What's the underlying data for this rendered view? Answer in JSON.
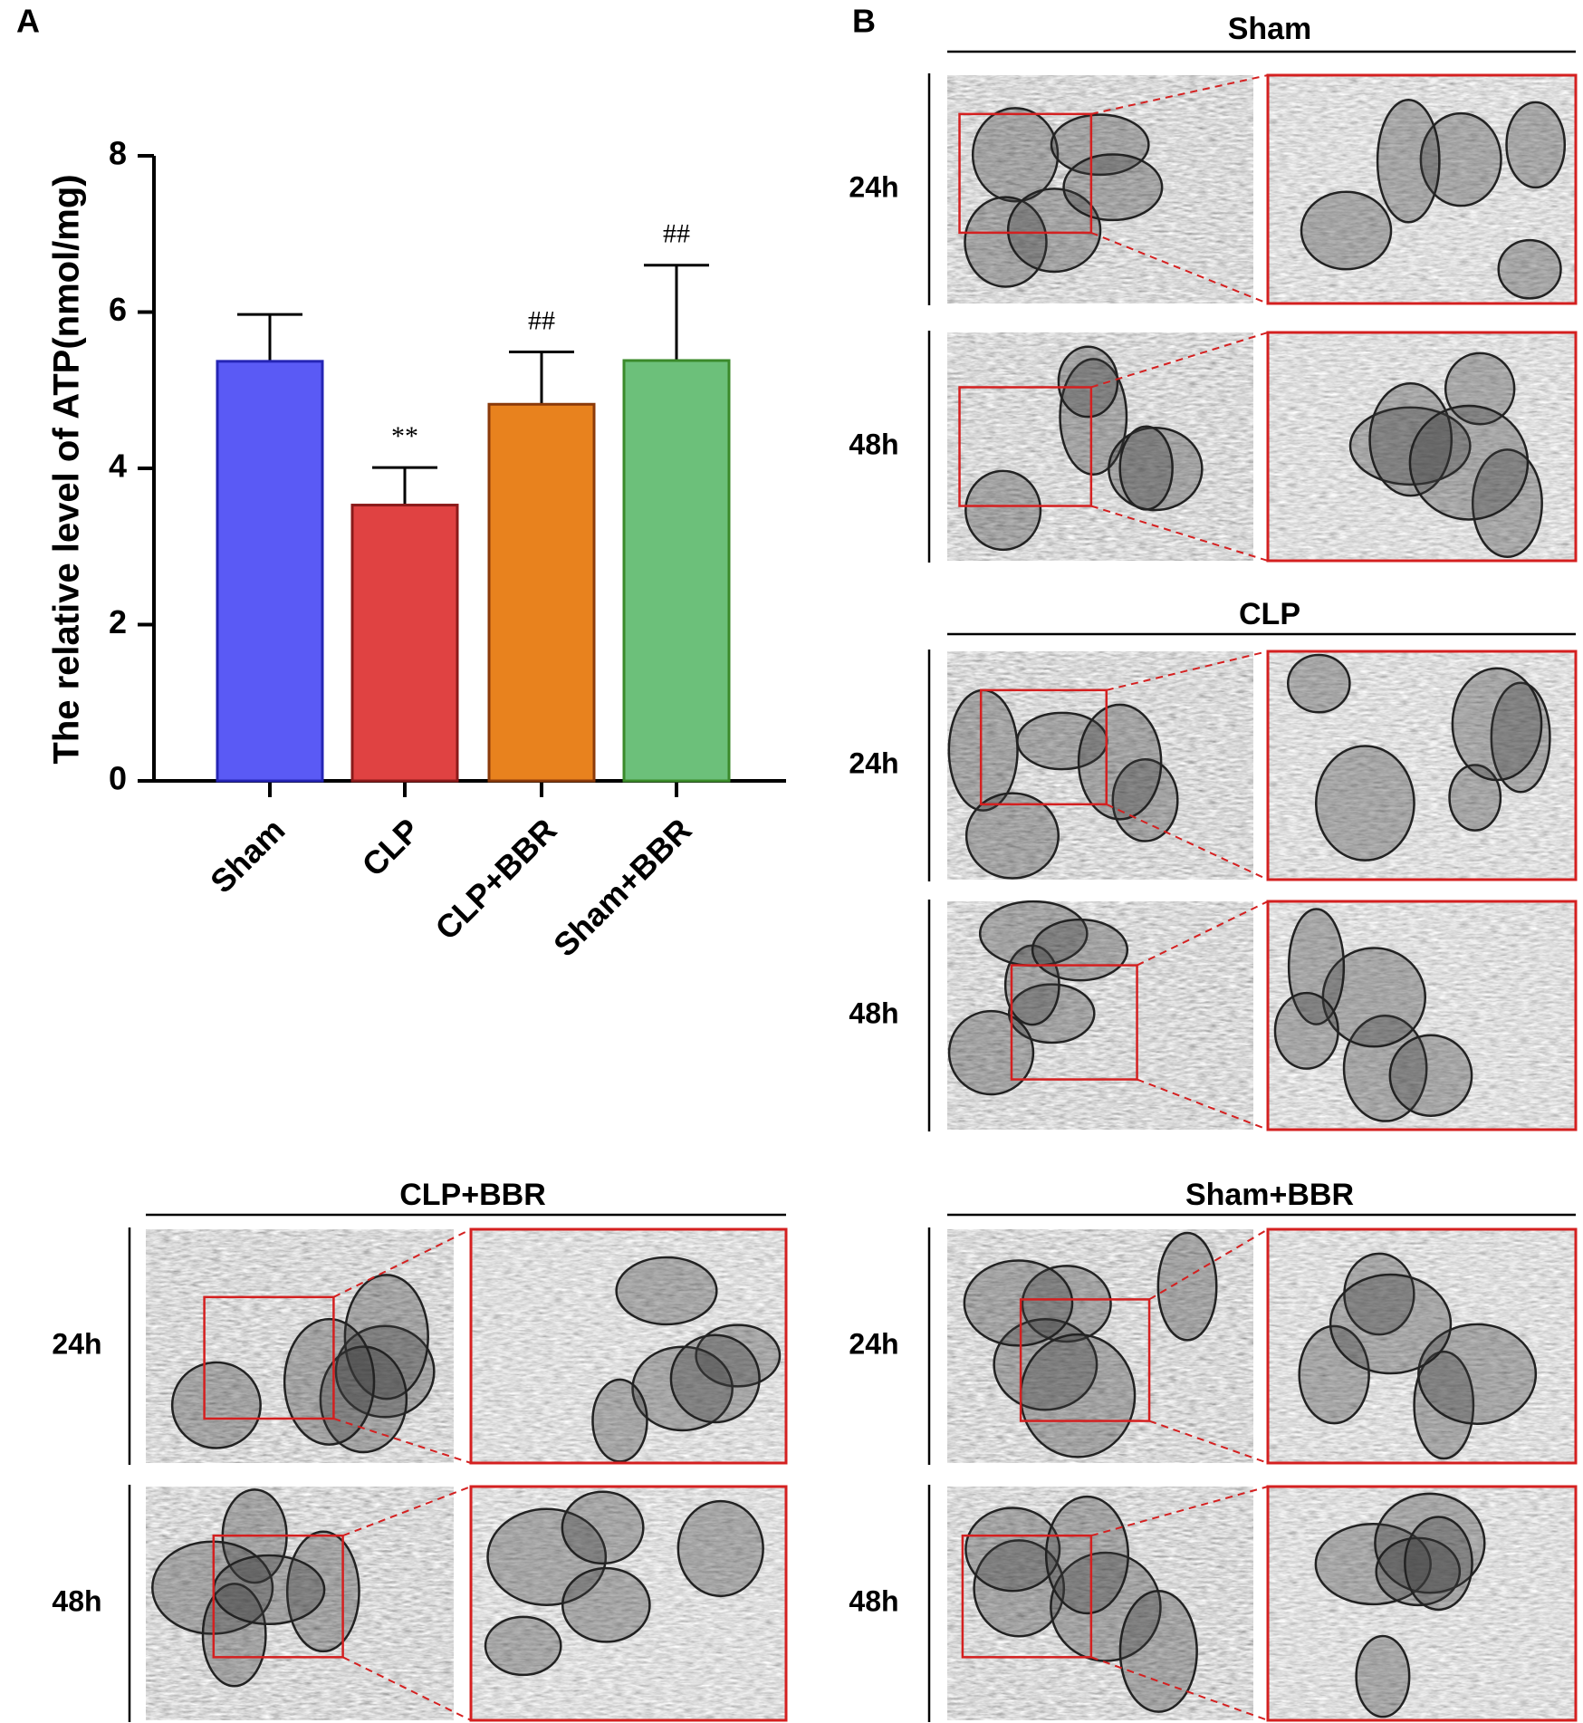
{
  "chart_data": {
    "type": "bar",
    "y_label": "The relative level of ATP(nmol/mg)",
    "categories": [
      "Sham",
      "CLP",
      "CLP+BBR",
      "Sham+BBR"
    ],
    "values": [
      5.37,
      3.53,
      4.82,
      5.38
    ],
    "errors": [
      0.6,
      0.48,
      0.67,
      1.22
    ],
    "annotations": [
      null,
      "**",
      "##",
      "##"
    ],
    "colors": [
      "#5a5af5",
      "#e04242",
      "#e8821e",
      "#6cc07a"
    ],
    "edge_colors": [
      "#2525b5",
      "#8b1a1a",
      "#8b3a0a",
      "#3a8a2a"
    ],
    "ylim": [
      0,
      8
    ],
    "yticks": [
      0,
      2,
      4,
      6,
      8
    ]
  },
  "panel_labels": [
    "A",
    "B"
  ],
  "groups": [
    {
      "title": "Sham",
      "rows": [
        "24h",
        "48h"
      ]
    },
    {
      "title": "CLP",
      "rows": [
        "24h",
        "48h"
      ]
    },
    {
      "title": "CLP+BBR",
      "rows": [
        "24h",
        "48h"
      ]
    },
    {
      "title": "Sham+BBR",
      "rows": [
        "24h",
        "48h"
      ]
    }
  ]
}
